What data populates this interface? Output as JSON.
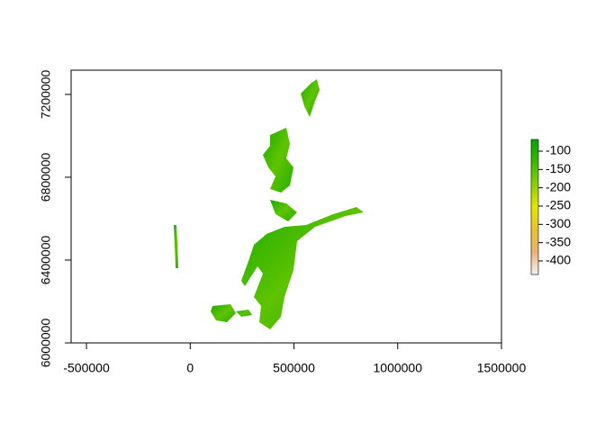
{
  "chart_data": {
    "type": "raster",
    "xlim": [
      -574000,
      1500000
    ],
    "ylim": [
      6000000,
      7317000
    ],
    "xticks": [
      -500000,
      0,
      500000,
      1000000,
      1500000
    ],
    "yticks": [
      6000000,
      6400000,
      6800000,
      7200000
    ],
    "colorbar": {
      "zlim": [
        -437,
        -68
      ],
      "ticks": [
        -100,
        -150,
        -200,
        -250,
        -300,
        -350,
        -400
      ],
      "colors": [
        "#f2f2f2",
        "#ecb176",
        "#e8c32e",
        "#e6e600",
        "#8bd000",
        "#3cb900",
        "#00a600"
      ]
    }
  }
}
